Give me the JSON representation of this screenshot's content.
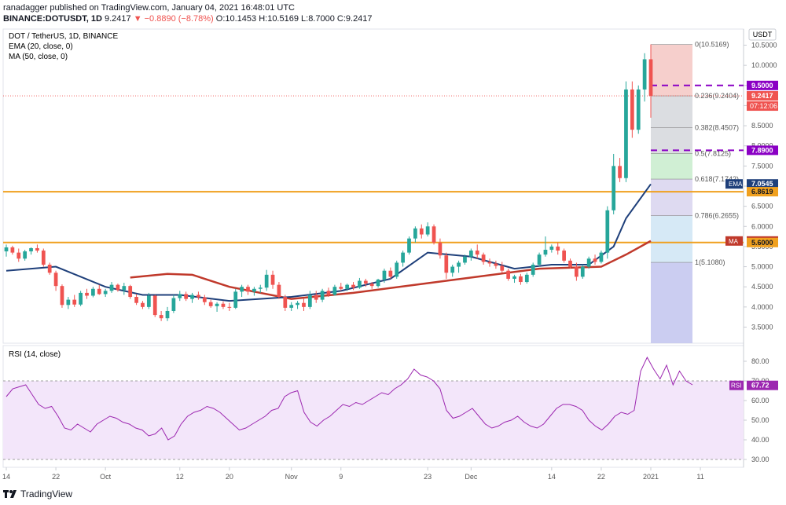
{
  "header": {
    "line1": "ranadagger published on TradingView.com, January 04, 2021 16:48:01 UTC",
    "symbol": "BINANCE:DOTUSDT, 1D",
    "last": "9.2417",
    "change": "▼ −0.8890 (−8.78%)",
    "ohlc": "O:10.1453 H:10.5169 L:8.7000 C:9.2417"
  },
  "legend": {
    "title": "DOT / TetherUS, 1D, BINANCE",
    "ema": "EMA (20, close, 0)",
    "ma": "MA (50, close, 0)"
  },
  "rsi_legend": "RSI (14, close)",
  "currency": "USDT",
  "footer": {
    "brand": "TradingView"
  },
  "colors": {
    "up": "#26a69a",
    "down": "#ef5350",
    "ema": "#1e3f7a",
    "ma": "#c0392b",
    "support": "#f0a01e",
    "purple": "#8a00c4",
    "rsi": "#9c27b0",
    "rsi_band": "#f3e6fa"
  },
  "chart_data": [
    {
      "type": "candlestick",
      "title": "DOT / TetherUS, 1D, BINANCE",
      "ylim": [
        3.1,
        10.9
      ],
      "y_ticks": [
        "10.5000",
        "10.0000",
        "9.5000",
        "9.0000",
        "8.5000",
        "8.0000",
        "7.5000",
        "7.0000",
        "6.5000",
        "6.0000",
        "5.5000",
        "5.0000",
        "4.5000",
        "4.0000",
        "3.5000"
      ],
      "x_ticks": [
        "14",
        "22",
        "Oct",
        "12",
        "20",
        "Nov",
        "9",
        "23",
        "Dec",
        "14",
        "22",
        "2021",
        "11"
      ],
      "x_tick_index": [
        0,
        8,
        16,
        28,
        36,
        46,
        54,
        68,
        75,
        88,
        96,
        104,
        112
      ],
      "candles": [
        [
          5.38,
          5.55,
          5.25,
          5.48
        ],
        [
          5.48,
          5.52,
          5.3,
          5.35
        ],
        [
          5.35,
          5.45,
          5.12,
          5.2
        ],
        [
          5.2,
          5.42,
          5.15,
          5.38
        ],
        [
          5.38,
          5.48,
          5.3,
          5.46
        ],
        [
          5.46,
          5.55,
          5.35,
          5.4
        ],
        [
          5.4,
          5.45,
          5.0,
          5.05
        ],
        [
          5.05,
          5.1,
          4.8,
          4.85
        ],
        [
          4.85,
          4.9,
          4.4,
          4.52
        ],
        [
          4.52,
          4.56,
          3.98,
          4.05
        ],
        [
          4.05,
          4.25,
          3.95,
          4.18
        ],
        [
          4.18,
          4.3,
          4.0,
          4.06
        ],
        [
          4.06,
          4.4,
          4.02,
          4.35
        ],
        [
          4.35,
          4.45,
          4.2,
          4.28
        ],
        [
          4.28,
          4.5,
          4.24,
          4.45
        ],
        [
          4.45,
          4.55,
          4.3,
          4.32
        ],
        [
          4.32,
          4.45,
          4.25,
          4.4
        ],
        [
          4.4,
          4.62,
          4.35,
          4.55
        ],
        [
          4.55,
          4.58,
          4.38,
          4.42
        ],
        [
          4.42,
          4.6,
          4.3,
          4.52
        ],
        [
          4.52,
          4.55,
          4.2,
          4.25
        ],
        [
          4.25,
          4.32,
          4.05,
          4.1
        ],
        [
          4.1,
          4.15,
          3.95,
          4.0
        ],
        [
          4.0,
          4.35,
          3.95,
          4.28
        ],
        [
          4.28,
          4.3,
          3.75,
          3.8
        ],
        [
          3.8,
          3.9,
          3.65,
          3.72
        ],
        [
          3.72,
          4.0,
          3.65,
          3.9
        ],
        [
          3.9,
          4.3,
          3.85,
          4.22
        ],
        [
          4.22,
          4.4,
          4.15,
          4.32
        ],
        [
          4.32,
          4.38,
          4.15,
          4.2
        ],
        [
          4.2,
          4.35,
          4.1,
          4.3
        ],
        [
          4.3,
          4.38,
          4.18,
          4.24
        ],
        [
          4.24,
          4.3,
          4.05,
          4.12
        ],
        [
          4.12,
          4.18,
          3.98,
          4.02
        ],
        [
          4.02,
          4.12,
          3.88,
          4.08
        ],
        [
          4.08,
          4.14,
          3.95,
          4.0
        ],
        [
          4.0,
          4.1,
          3.9,
          3.98
        ],
        [
          3.98,
          4.45,
          3.95,
          4.38
        ],
        [
          4.38,
          4.55,
          4.25,
          4.5
        ],
        [
          4.5,
          4.55,
          4.3,
          4.38
        ],
        [
          4.38,
          4.5,
          4.28,
          4.45
        ],
        [
          4.45,
          4.55,
          4.35,
          4.48
        ],
        [
          4.48,
          4.92,
          4.4,
          4.8
        ],
        [
          4.8,
          4.9,
          4.45,
          4.55
        ],
        [
          4.55,
          4.62,
          4.2,
          4.25
        ],
        [
          4.25,
          4.3,
          3.9,
          3.98
        ],
        [
          3.98,
          4.12,
          3.9,
          4.05
        ],
        [
          4.05,
          4.15,
          3.95,
          4.1
        ],
        [
          4.1,
          4.2,
          3.9,
          4.0
        ],
        [
          4.0,
          4.4,
          3.95,
          4.3
        ],
        [
          4.3,
          4.4,
          4.1,
          4.18
        ],
        [
          4.18,
          4.45,
          4.12,
          4.4
        ],
        [
          4.4,
          4.48,
          4.25,
          4.3
        ],
        [
          4.3,
          4.55,
          4.28,
          4.5
        ],
        [
          4.5,
          4.6,
          4.4,
          4.45
        ],
        [
          4.45,
          4.58,
          4.4,
          4.55
        ],
        [
          4.55,
          4.62,
          4.42,
          4.48
        ],
        [
          4.48,
          4.72,
          4.45,
          4.65
        ],
        [
          4.65,
          4.7,
          4.5,
          4.58
        ],
        [
          4.58,
          4.62,
          4.45,
          4.52
        ],
        [
          4.52,
          4.7,
          4.48,
          4.68
        ],
        [
          4.68,
          4.95,
          4.6,
          4.9
        ],
        [
          4.9,
          4.98,
          4.7,
          4.75
        ],
        [
          4.75,
          5.15,
          4.7,
          5.1
        ],
        [
          5.1,
          5.4,
          5.0,
          5.35
        ],
        [
          5.35,
          5.75,
          5.3,
          5.7
        ],
        [
          5.7,
          6.0,
          5.6,
          5.95
        ],
        [
          5.95,
          6.05,
          5.7,
          5.8
        ],
        [
          5.8,
          6.1,
          5.75,
          6.0
        ],
        [
          6.0,
          6.05,
          5.55,
          5.6
        ],
        [
          5.6,
          5.7,
          5.2,
          5.28
        ],
        [
          5.28,
          5.35,
          4.7,
          4.85
        ],
        [
          4.85,
          5.05,
          4.75,
          5.0
        ],
        [
          5.0,
          5.15,
          4.85,
          5.1
        ],
        [
          5.1,
          5.3,
          5.05,
          5.25
        ],
        [
          5.25,
          5.45,
          5.15,
          5.4
        ],
        [
          5.4,
          5.55,
          5.2,
          5.3
        ],
        [
          5.3,
          5.35,
          5.05,
          5.12
        ],
        [
          5.12,
          5.2,
          5.0,
          5.08
        ],
        [
          5.08,
          5.15,
          4.95,
          5.02
        ],
        [
          5.02,
          5.12,
          4.85,
          4.9
        ],
        [
          4.9,
          4.95,
          4.65,
          4.7
        ],
        [
          4.7,
          4.8,
          4.6,
          4.76
        ],
        [
          4.76,
          4.82,
          4.55,
          4.62
        ],
        [
          4.62,
          4.85,
          4.58,
          4.8
        ],
        [
          4.8,
          5.1,
          4.75,
          5.05
        ],
        [
          5.05,
          5.35,
          5.0,
          5.3
        ],
        [
          5.3,
          5.75,
          5.25,
          5.42
        ],
        [
          5.42,
          5.55,
          5.35,
          5.5
        ],
        [
          5.5,
          5.6,
          5.3,
          5.4
        ],
        [
          5.4,
          5.45,
          5.1,
          5.15
        ],
        [
          5.15,
          5.2,
          4.95,
          5.0
        ],
        [
          5.0,
          5.1,
          4.65,
          4.75
        ],
        [
          4.75,
          5.05,
          4.7,
          5.0
        ],
        [
          5.0,
          5.25,
          4.95,
          5.2
        ],
        [
          5.2,
          5.3,
          5.05,
          5.12
        ],
        [
          5.12,
          5.4,
          5.08,
          5.35
        ],
        [
          5.35,
          6.5,
          5.2,
          6.4
        ],
        [
          6.4,
          7.8,
          6.3,
          7.5
        ],
        [
          7.5,
          7.7,
          7.1,
          7.2
        ],
        [
          7.2,
          9.6,
          7.1,
          9.4
        ],
        [
          9.4,
          9.6,
          8.2,
          8.4
        ],
        [
          8.4,
          9.5,
          8.3,
          9.4
        ],
        [
          9.4,
          10.3,
          9.1,
          10.15
        ],
        [
          10.15,
          10.52,
          8.7,
          9.24
        ]
      ],
      "first_candle_date_index_label": "14",
      "ema20": [
        [
          0,
          4.9
        ],
        [
          8,
          5.0
        ],
        [
          16,
          4.5
        ],
        [
          22,
          4.3
        ],
        [
          28,
          4.3
        ],
        [
          36,
          4.15
        ],
        [
          46,
          4.25
        ],
        [
          54,
          4.4
        ],
        [
          62,
          4.7
        ],
        [
          68,
          5.35
        ],
        [
          75,
          5.25
        ],
        [
          82,
          4.95
        ],
        [
          88,
          5.05
        ],
        [
          94,
          5.05
        ],
        [
          98,
          5.5
        ],
        [
          100,
          6.2
        ],
        [
          104,
          7.05
        ]
      ],
      "ma50": [
        [
          20,
          4.73
        ],
        [
          26,
          4.82
        ],
        [
          30,
          4.8
        ],
        [
          36,
          4.5
        ],
        [
          46,
          4.2
        ],
        [
          56,
          4.35
        ],
        [
          66,
          4.55
        ],
        [
          76,
          4.75
        ],
        [
          86,
          4.95
        ],
        [
          96,
          5.0
        ],
        [
          100,
          5.3
        ],
        [
          104,
          5.64
        ]
      ],
      "price_levels": [
        {
          "label": "9.5000",
          "value": 9.5,
          "style": "purple-dashed"
        },
        {
          "label": "9.2417",
          "value": 9.2417,
          "style": "last-price"
        },
        {
          "label": "7.8900",
          "value": 7.89,
          "style": "purple-dashed"
        },
        {
          "label": "7.0545",
          "value": 7.0545,
          "style": "ema"
        },
        {
          "label": "6.8619",
          "value": 6.8619,
          "style": "support"
        },
        {
          "label": "5.6387",
          "value": 5.6387,
          "style": "ma"
        },
        {
          "label": "5.6000",
          "value": 5.6,
          "style": "support"
        }
      ],
      "countdown": "07:12:06",
      "fib_levels": [
        {
          "ratio": "0",
          "value": 10.5169,
          "label": "0(10.5169)"
        },
        {
          "ratio": "0.236",
          "value": 9.2404,
          "label": "0.236(9.2404)"
        },
        {
          "ratio": "0.382",
          "value": 8.4507,
          "label": "0.382(8.4507)"
        },
        {
          "ratio": "0.5",
          "value": 7.8125,
          "label": "0.5(7.8125)"
        },
        {
          "ratio": "0.618",
          "value": 7.1742,
          "label": "0.618(7.1742)"
        },
        {
          "ratio": "0.786",
          "value": 6.2655,
          "label": "0.786(6.2655)"
        },
        {
          "ratio": "1",
          "value": 5.108,
          "label": "1(5.1080)"
        }
      ],
      "tag_labels": {
        "ema": "EMA",
        "ma": "MA"
      }
    },
    {
      "type": "line",
      "title": "RSI (14, close)",
      "ylim": [
        26,
        88
      ],
      "y_ticks": [
        "80.00",
        "70.00",
        "60.00",
        "50.00",
        "40.00",
        "30.00"
      ],
      "band": [
        30,
        70
      ],
      "last_value": "67.72",
      "values": [
        62,
        66,
        67,
        68,
        63,
        58,
        56,
        57,
        52,
        46,
        45,
        48,
        46,
        44,
        48,
        50,
        52,
        51,
        49,
        48,
        46,
        45,
        42,
        43,
        46,
        40,
        42,
        48,
        52,
        54,
        55,
        57,
        56,
        54,
        51,
        48,
        45,
        46,
        48,
        50,
        52,
        55,
        56,
        62,
        64,
        65,
        54,
        49,
        47,
        50,
        52,
        55,
        58,
        57,
        59,
        58,
        60,
        62,
        64,
        63,
        66,
        68,
        71,
        76,
        73,
        72,
        70,
        66,
        55,
        51,
        52,
        54,
        56,
        52,
        48,
        46,
        47,
        49,
        50,
        52,
        49,
        47,
        46,
        48,
        52,
        56,
        58,
        58,
        57,
        55,
        50,
        47,
        45,
        48,
        52,
        54,
        53,
        55,
        75,
        82,
        76,
        71,
        78,
        68,
        75,
        70,
        68
      ]
    }
  ]
}
